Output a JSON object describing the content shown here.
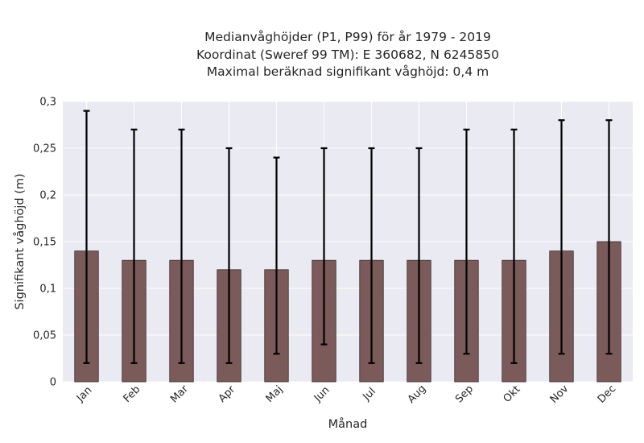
{
  "chart_data": {
    "type": "bar",
    "title_lines": [
      "Medianvåghöjder (P1, P99) för år 1979 - 2019",
      "Koordinat (Sweref 99 TM): E 360682, N 6245850",
      "Maximal beräknad signifikant våghöjd: 0,4 m"
    ],
    "xlabel": "Månad",
    "ylabel": "Signifikant våghöjd (m)",
    "categories": [
      "Jan",
      "Feb",
      "Mar",
      "Apr",
      "Maj",
      "Jun",
      "Jul",
      "Aug",
      "Sep",
      "Okt",
      "Nov",
      "Dec"
    ],
    "values": [
      0.14,
      0.13,
      0.13,
      0.12,
      0.12,
      0.13,
      0.13,
      0.13,
      0.13,
      0.13,
      0.14,
      0.15
    ],
    "p1": [
      0.02,
      0.02,
      0.02,
      0.02,
      0.03,
      0.04,
      0.02,
      0.02,
      0.03,
      0.02,
      0.03,
      0.03
    ],
    "p99": [
      0.29,
      0.27,
      0.27,
      0.25,
      0.24,
      0.25,
      0.25,
      0.25,
      0.27,
      0.27,
      0.28,
      0.28
    ],
    "yticks": [
      0,
      0.05,
      0.1,
      0.15,
      0.2,
      0.25,
      0.3
    ],
    "ytick_labels": [
      "0",
      "0,05",
      "0,1",
      "0,15",
      "0,2",
      "0,25",
      "0,3"
    ],
    "ylim": [
      0,
      0.3
    ],
    "grid": true,
    "colors": {
      "bar": "#7b5a5a",
      "bar_edge": "#3a2a2a",
      "errorbar": "#000000",
      "plot_background": "#eaeaf2",
      "grid": "#ffffff"
    }
  }
}
